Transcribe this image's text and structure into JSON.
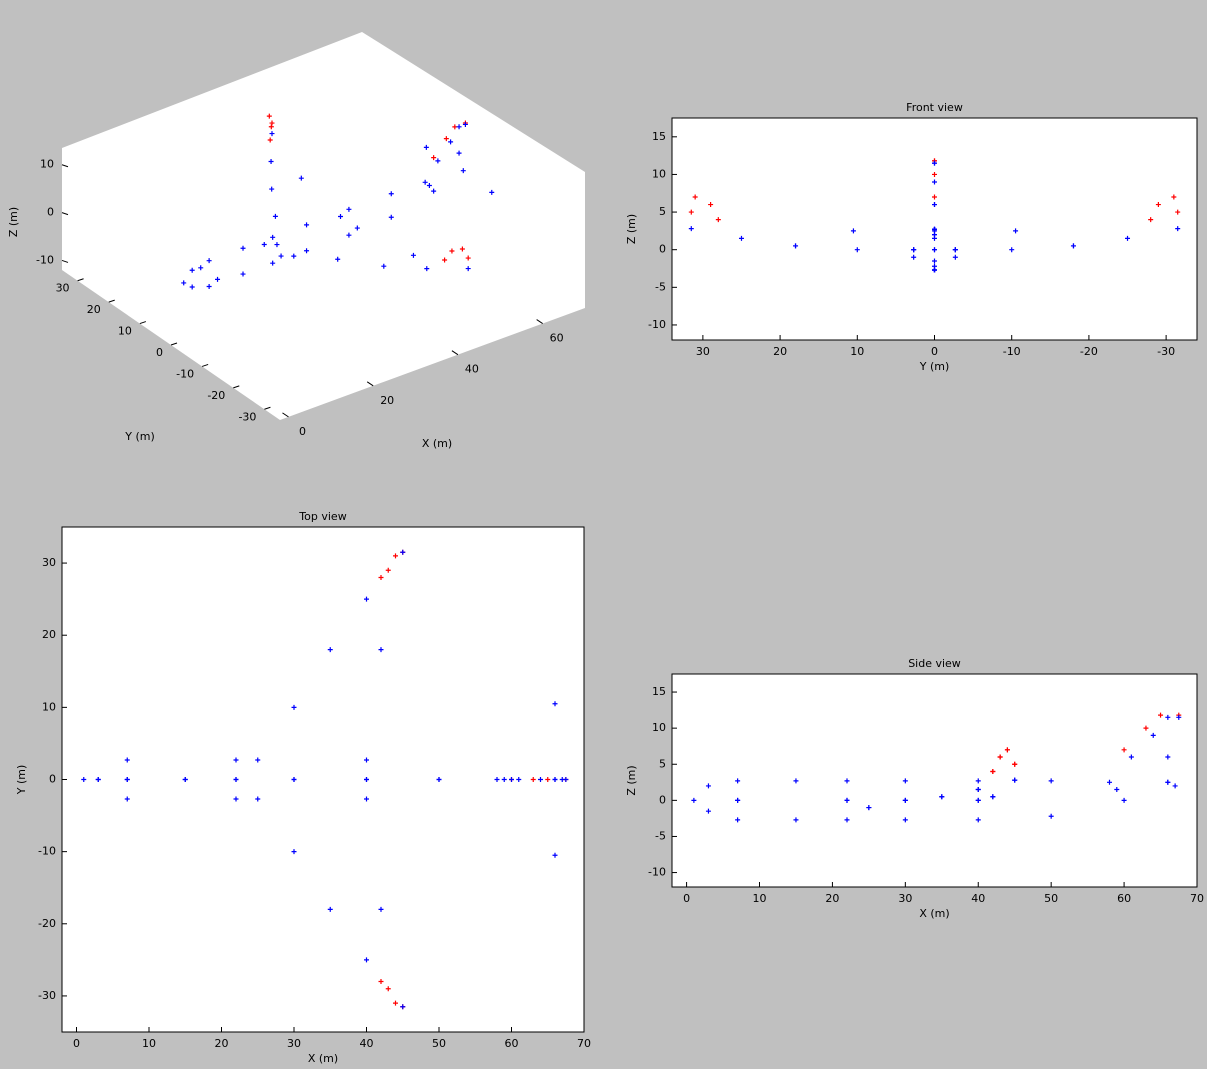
{
  "chart_data": [
    {
      "type": "scatter3d",
      "xlabel": "X (m)",
      "ylabel": "Y (m)",
      "zlabel": "Z (m)",
      "xlim": [
        -2,
        70
      ],
      "ylim": [
        -35,
        35
      ],
      "zlim": [
        -12,
        13.5
      ],
      "xticks": [
        0,
        20,
        40,
        60
      ],
      "yticks": [
        -30,
        -20,
        -10,
        0,
        10,
        20,
        30
      ],
      "zticks": [
        -10,
        0,
        10
      ],
      "series": [
        {
          "color": "#ff0000",
          "x": [
            42,
            43,
            44,
            45,
            42,
            43,
            44,
            45,
            60,
            63,
            65,
            67.5
          ],
          "y": [
            28,
            29,
            31,
            31.5,
            -28,
            -29,
            -31,
            -31.5,
            0,
            0,
            0,
            0
          ],
          "z": [
            4,
            6,
            7,
            5,
            4,
            6,
            7,
            5,
            7,
            10,
            11.8,
            11.8
          ]
        },
        {
          "color": "#0000ff",
          "x": [
            1,
            3,
            7,
            15,
            22,
            30,
            40,
            50,
            58,
            3,
            7,
            15,
            22,
            30,
            40,
            50,
            7,
            22,
            40,
            7,
            22,
            40,
            25,
            30,
            35,
            40,
            45,
            42,
            25,
            30,
            35,
            40,
            45,
            42,
            59,
            66,
            67,
            66,
            61,
            64,
            66,
            67.5,
            66,
            60
          ],
          "y": [
            0,
            0,
            0,
            0,
            0,
            0,
            0,
            0,
            0,
            0,
            0,
            0,
            0,
            0,
            0,
            0,
            2.7,
            2.7,
            2.7,
            -2.7,
            -2.7,
            -2.7,
            2.7,
            10,
            18,
            25,
            31.5,
            18,
            -2.7,
            -10,
            -18,
            -25,
            -31.5,
            -18,
            0,
            10.5,
            0,
            -10.5,
            0,
            0,
            0,
            0,
            0,
            0
          ],
          "z": [
            0,
            2,
            2.7,
            2.7,
            2.7,
            2.7,
            2.7,
            2.7,
            2.5,
            -1.5,
            -2.7,
            -2.7,
            -2.7,
            -2.7,
            -2.7,
            -2.2,
            0,
            0,
            0,
            0,
            0,
            0,
            -1,
            0,
            0.5,
            1.5,
            2.8,
            0.5,
            -1,
            0,
            0.5,
            1.5,
            2.8,
            0.5,
            1.5,
            2.5,
            2,
            2.5,
            6,
            9,
            11.5,
            11.5,
            6,
            0
          ]
        }
      ]
    },
    {
      "type": "scatter",
      "title": "Front view",
      "xlabel": "Y (m)",
      "ylabel": "Z (m)",
      "xlim": [
        34,
        -34
      ],
      "ylim": [
        -12,
        17.5
      ],
      "xticks": [
        30,
        20,
        10,
        0,
        -10,
        -20,
        -30
      ],
      "yticks": [
        -10,
        -5,
        0,
        5,
        10,
        15
      ],
      "series": [
        {
          "color": "#ff0000",
          "x": [
            28,
            29,
            31,
            31.5,
            -28,
            -29,
            -31,
            -31.5,
            0,
            0,
            0,
            0
          ],
          "y": [
            4,
            6,
            7,
            5,
            4,
            6,
            7,
            5,
            7,
            10,
            11.8,
            11.8
          ]
        },
        {
          "color": "#0000ff",
          "x": [
            0,
            0,
            0,
            0,
            0,
            0,
            0,
            0,
            0,
            0,
            0,
            0,
            0,
            0,
            0,
            0,
            2.7,
            2.7,
            2.7,
            -2.7,
            -2.7,
            -2.7,
            2.7,
            10,
            18,
            25,
            31.5,
            18,
            -2.7,
            -10,
            -18,
            -25,
            -31.5,
            -18,
            0,
            10.5,
            0,
            -10.5,
            0,
            0,
            0,
            0,
            0,
            0
          ],
          "y": [
            0,
            2,
            2.7,
            2.7,
            2.7,
            2.7,
            2.7,
            2.7,
            2.5,
            -1.5,
            -2.7,
            -2.7,
            -2.7,
            -2.7,
            -2.7,
            -2.2,
            0,
            0,
            0,
            0,
            0,
            0,
            -1,
            0,
            0.5,
            1.5,
            2.8,
            0.5,
            -1,
            0,
            0.5,
            1.5,
            2.8,
            0.5,
            1.5,
            2.5,
            2,
            2.5,
            6,
            9,
            11.5,
            11.5,
            6,
            0
          ]
        }
      ]
    },
    {
      "type": "scatter",
      "title": "Top view",
      "xlabel": "X (m)",
      "ylabel": "Y (m)",
      "xlim": [
        -2,
        70
      ],
      "ylim": [
        -35,
        35
      ],
      "xticks": [
        0,
        10,
        20,
        30,
        40,
        50,
        60,
        70
      ],
      "yticks": [
        -30,
        -20,
        -10,
        0,
        10,
        20,
        30
      ],
      "series": [
        {
          "color": "#ff0000",
          "x": [
            42,
            43,
            44,
            45,
            42,
            43,
            44,
            45,
            60,
            63,
            65,
            67.5
          ],
          "y": [
            28,
            29,
            31,
            31.5,
            -28,
            -29,
            -31,
            -31.5,
            0,
            0,
            0,
            0
          ]
        },
        {
          "color": "#0000ff",
          "x": [
            1,
            3,
            7,
            15,
            22,
            30,
            40,
            50,
            58,
            3,
            7,
            15,
            22,
            30,
            40,
            50,
            7,
            22,
            40,
            7,
            22,
            40,
            25,
            30,
            35,
            40,
            45,
            42,
            25,
            30,
            35,
            40,
            45,
            42,
            59,
            66,
            67,
            66,
            61,
            64,
            66,
            67.5,
            66,
            60
          ],
          "y": [
            0,
            0,
            0,
            0,
            0,
            0,
            0,
            0,
            0,
            0,
            0,
            0,
            0,
            0,
            0,
            0,
            2.7,
            2.7,
            2.7,
            -2.7,
            -2.7,
            -2.7,
            2.7,
            10,
            18,
            25,
            31.5,
            18,
            -2.7,
            -10,
            -18,
            -25,
            -31.5,
            -18,
            0,
            10.5,
            0,
            -10.5,
            0,
            0,
            0,
            0,
            0,
            0
          ]
        }
      ]
    },
    {
      "type": "scatter",
      "title": "Side view",
      "xlabel": "X (m)",
      "ylabel": "Z (m)",
      "xlim": [
        -2,
        70
      ],
      "ylim": [
        -12,
        17.5
      ],
      "xticks": [
        0,
        10,
        20,
        30,
        40,
        50,
        60,
        70
      ],
      "yticks": [
        -10,
        -5,
        0,
        5,
        10,
        15
      ],
      "series": [
        {
          "color": "#ff0000",
          "x": [
            42,
            43,
            44,
            45,
            42,
            43,
            44,
            45,
            60,
            63,
            65,
            67.5
          ],
          "y": [
            4,
            6,
            7,
            5,
            4,
            6,
            7,
            5,
            7,
            10,
            11.8,
            11.8
          ]
        },
        {
          "color": "#0000ff",
          "x": [
            1,
            3,
            7,
            15,
            22,
            30,
            40,
            50,
            58,
            3,
            7,
            15,
            22,
            30,
            40,
            50,
            7,
            22,
            40,
            7,
            22,
            40,
            25,
            30,
            35,
            40,
            45,
            42,
            25,
            30,
            35,
            40,
            45,
            42,
            59,
            66,
            67,
            66,
            61,
            64,
            66,
            67.5,
            66,
            60
          ],
          "y": [
            0,
            2,
            2.7,
            2.7,
            2.7,
            2.7,
            2.7,
            2.7,
            2.5,
            -1.5,
            -2.7,
            -2.7,
            -2.7,
            -2.7,
            -2.7,
            -2.2,
            0,
            0,
            0,
            0,
            0,
            0,
            -1,
            0,
            0.5,
            1.5,
            2.8,
            0.5,
            -1,
            0,
            0.5,
            1.5,
            2.8,
            0.5,
            1.5,
            2.5,
            2,
            2.5,
            6,
            9,
            11.5,
            11.5,
            6,
            0
          ]
        }
      ]
    }
  ]
}
